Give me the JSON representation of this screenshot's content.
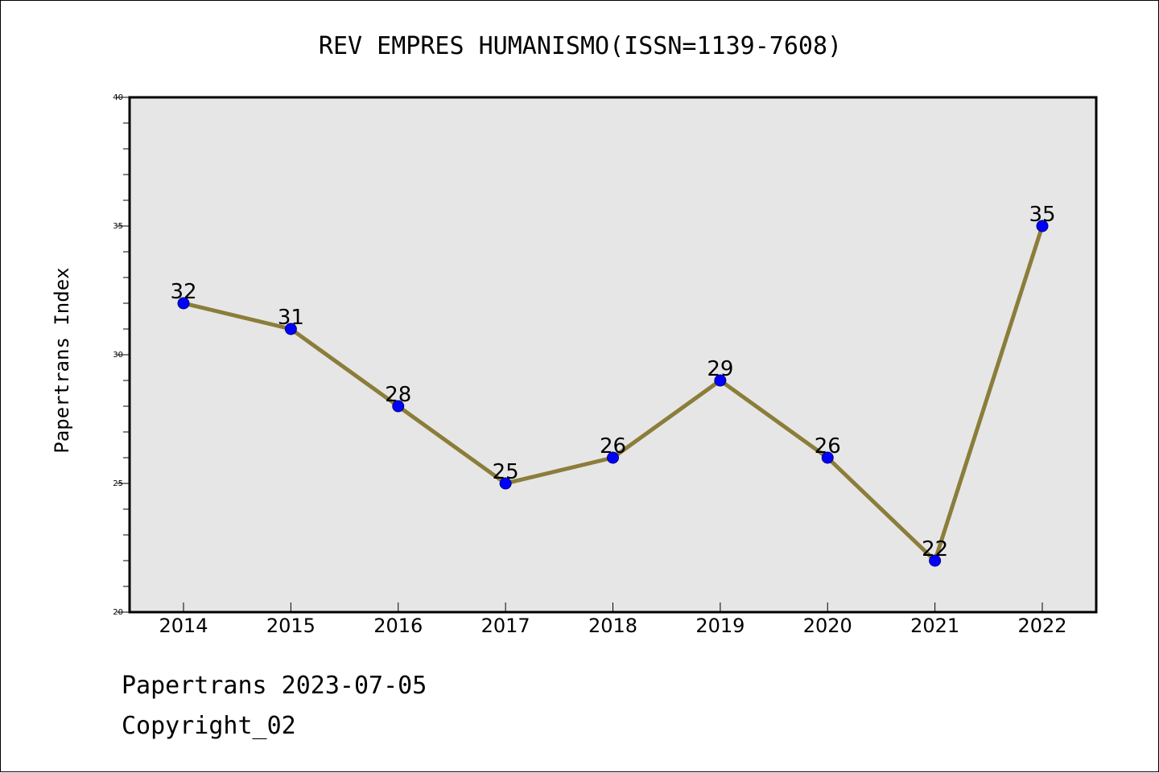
{
  "chart_data": {
    "type": "line",
    "title": "REV EMPRES HUMANISMO(ISSN=1139-7608)",
    "xlabel": "",
    "ylabel": "Papertrans Index",
    "categories": [
      "2014",
      "2015",
      "2016",
      "2017",
      "2018",
      "2019",
      "2020",
      "2021",
      "2022"
    ],
    "series": [
      {
        "values": [
          32,
          31,
          28,
          25,
          26,
          29,
          26,
          22,
          35
        ]
      }
    ],
    "ylim": [
      20,
      40
    ],
    "yticks": [
      20,
      25,
      30,
      35,
      40
    ],
    "grid": false,
    "plot_background": "#e6e6e6",
    "line_color": "#8b7d3a",
    "marker_color": "#0000ff",
    "data_labels": true
  },
  "footer": {
    "line1": "Papertrans 2023-07-05",
    "line2": "Copyright_02"
  }
}
